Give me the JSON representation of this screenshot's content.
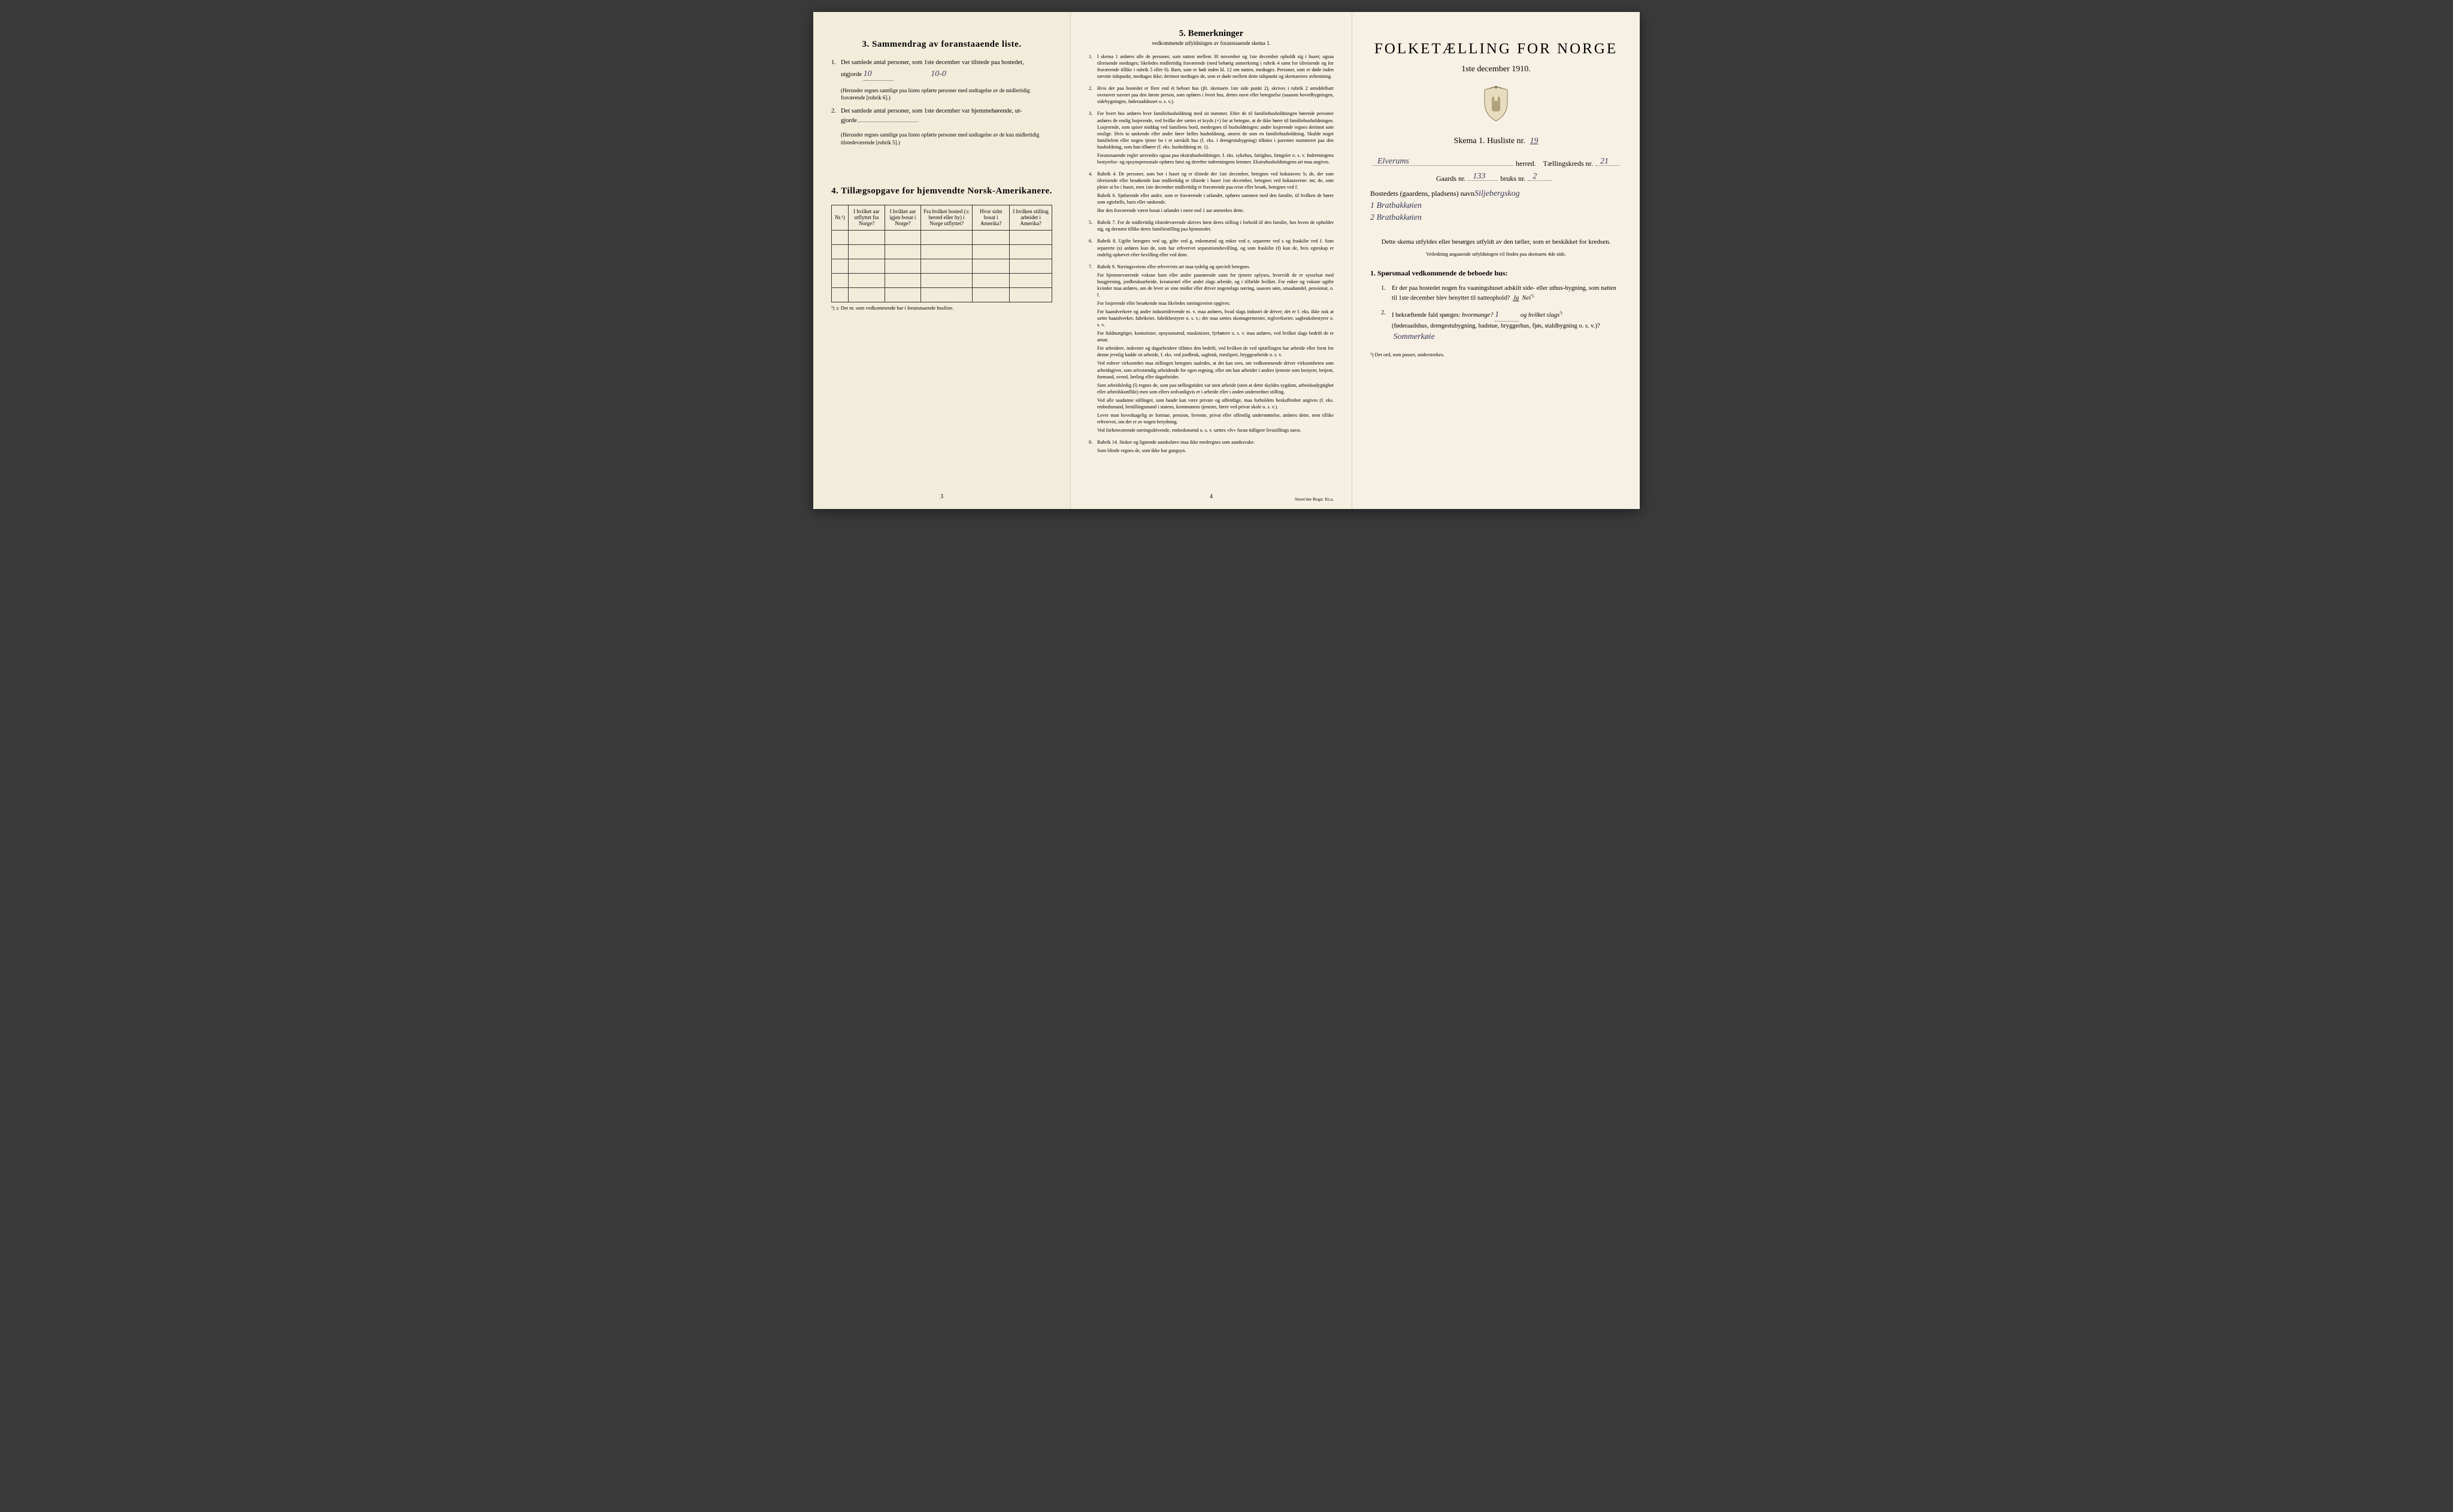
{
  "colors": {
    "paper": "#f4efe0",
    "paper_mid": "#f5f0e2",
    "paper_right": "#f6f1e4",
    "ink": "#2a2a2a",
    "handwriting": "#3a3a5a",
    "border": "#333333",
    "background": "#3a3a3a"
  },
  "left": {
    "section3_title": "3.   Sammendrag av foranstaaende liste.",
    "item1_pre": "Det samlede antal personer, som 1ste december var tilstede paa bostedet,",
    "item1_label": "utgjorde",
    "item1_value": "10",
    "item1_margin": "10-0",
    "item1_note": "(Herunder regnes samtlige paa listen opførte personer med undtagelse av de midlertidig fraværende [rubrik 6].)",
    "item2_pre": "Det samlede antal personer, som 1ste december var hjemmehørende, ut-",
    "item2_label": "gjorde",
    "item2_value": "",
    "item2_note": "(Herunder regnes samtlige paa listen opførte personer med undtagelse av de kun midlertidig tilstedeværende [rubrik 5].)",
    "section4_title": "4.  Tillægsopgave for hjemvendte Norsk-Amerikanere.",
    "table": {
      "headers": [
        "Nr.¹)",
        "I hvilket aar utflyttet fra Norge?",
        "I hvilket aar igjen bosat i Norge?",
        "Fra hvilket bosted (ɔ: herred eller by) i Norge utflyttet?",
        "Hvor sidst bosat i Amerika?",
        "I hvilken stilling arbeidet i Amerika?"
      ],
      "rows": 5
    },
    "table_footnote": "¹) ɔ: Det nr. som vedkommende har i foranstaaende husliste.",
    "page_num": "3"
  },
  "middle": {
    "title": "5.   Bemerkninger",
    "subtitle": "vedkommende utfyldningen av foranstaaende skema 1.",
    "items": [
      {
        "n": "1.",
        "text": "I skema 1 anføres alle de personer, som natten mellem 30 november og 1ste december opholdt sig i huset; ogsaa tilreisende medtages; likeledes midlertidig fraværende (med behørig anmerkning i rubrik 4 samt for tilreisende og for fraværende tillike i rubrik 5 eller 6). Barn, som er født inden kl. 12 om natten, medtages. Personer, som er døde inden nævnte tidspunkt, medtages ikke; derimot medtages de, som er døde mellem dette tidspunkt og skemaernes avhentning."
      },
      {
        "n": "2.",
        "text": "Hvis der paa bostedet er flere end ét beboet hus (jfr. skemaets 1ste side punkt 2), skrives i rubrik 2 umiddelbart ovenover navnet paa den første person, som opføres i hvert hus, dettes navn eller betegnelse (saasom hovedbygningen, sidebygningen, føderaadshuset o. s. v.)."
      },
      {
        "n": "3.",
        "text": "For hvert hus anføres hver familiehusholdning med sit nummer. Efter de til familiehusholdningen hørende personer anføres de enslig losjerende, ved hvilke der sættes et kryds (×) for at betegne, at de ikke hører til familiehusholdningen. Losjerende, som spiser middag ved familiens bord, medregnes til husholdningen; andre losjerende regnes derimot som enslige. Hvis to søskende eller andre fører fælles husholdning, ansees de som en familiehusholdning. Skulde noget familielem eller nogen tjener bo i et særskilt hus (f. eks. i drengestubygning) tilføies i parentes nummeret paa den husholdning, som han tilhører (f. eks. husholdning nr. 1).",
        "text2": "Foranstaaende regler anvendes ogsaa paa ekstrahusholdninger, f. eks. sykehus, fattighus, fængsler o. s. v. Indretningens bestyrelse- og opsynspersonale opføres først og derefter indretningens lemmer. Ekstrahusholdningens art maa angives."
      },
      {
        "n": "4.",
        "text": "Rubrik 4. De personer, som bor i huset og er tilstede der 1ste december, betegnes ved bokstaven: b; de, der som tilreisende eller besøkende kun midlertidig er tilstede i huset 1ste december, betegnes ved bokstaverne: mt; de, som pleier at bo i huset, men 1ste december midlertidig er fraværende paa reise eller besøk, betegnes ved f.",
        "text2": "Rubrik 6. Sjøfarende eller andre, som er fraværende i utlandet, opføres sammen med den familie, til hvilken de hører som egtefælle, barn eller søskende.",
        "text3": "Har den fraværende været bosat i utlandet i mere end 1 aar anmerkes dette."
      },
      {
        "n": "5.",
        "text": "Rubrik 7. For de midlertidig tilstedeværende skrives først deres stilling i forhold til den familie, hos hvem de opholder sig, og dernæst tillike deres familiestilling paa hjemstedet."
      },
      {
        "n": "6.",
        "text": "Rubrik 8. Ugifte betegnes ved ug, gifte ved g, enkemænd og enker ved e, separerte ved s og fraskilte ved f. Som separerte (s) anføres kun de, som har erhvervet separationsbevilling, og som fraskilte (f) kun de, hvis egteskap er endelig ophævet efter bevilling eller ved dom."
      },
      {
        "n": "7.",
        "text": "Rubrik 9. Næringsveiens eller erhvervets art maa tydelig og specielt betegnes.",
        "paragraphs": [
          "For hjemmeværende voksne barn eller andre paarørende samt for tjenere oplyses, hvorvidt de er sysselsat med husgjerning, jordbruksarbeide, kreaturstel eller andet slags arbeide, og i tilfælde hvilket. For enker og voksne ugifte kvinder maa anføres, om de lever av sine midler eller driver nogenslags næring, saasom søm, smaahandel, pensionat, o. l.",
          "For losjerende eller besøkende maa likeledes næringsveien opgives.",
          "For haandverkere og andre industridrivende m. v. maa anføres, hvad slags industri de driver; det er f. eks. ikke nok at sætte haandverker, fabrikeier, fabrikbestyrer o. s. v.; der maa sættes skomagermester, teglverkseier, sagbruksbestyrer o. s. v.",
          "For fuldmægtiger, kontorister, opsynsmænd, maskinister, fyrbøtere o. s. v. maa anføres, ved hvilket slags bedrift de er ansat.",
          "For arbeidere, inderster og dagarbeidere tilføies den bedrift, ved hvilken de ved optællingen har arbeide eller forut for denne jevnlig hadde sit arbeide, f. eks. ved jordbruk, sagbruk, træsliperi, bryggearbeide o. s. v.",
          "Ved enhver virksomhet maa stillingen betegnes saaledes, at det kan sees, om vedkommende driver virksomheten som arbeidsgiver, som selvstændig arbeidende for egen regning, eller om han arbeider i andres tjeneste som bestyrer, betjent, formand, svend, lærling eller dagarbeider.",
          "Som arbeidsledig (l) regnes de, som paa tællingstiden var uten arbeide (uten at dette skyldes sygdom, arbeidsudygtighet eller arbeidskonflikt) men som ellers sedvanligvis er i arbeide eller i anden underordnet stilling.",
          "Ved alle saadanne stillinger, som baade kan være private og offentlige, maa forholdets beskaffenhet angives (f. eks. embedsmand, bestillingsmand i statens, kommunens tjeneste, lærer ved privat skole o. s. v.).",
          "Lever man hovedsagelig av formue, pension, livrente, privat eller offentlig understøttelse, anføres dette, men tillike erhvervet, om det er av nogen betydning.",
          "Ved forhenværende næringsdrivende, embedsmænd o. s. v. sættes «fv» foran tidligere livsstillings navn."
        ]
      },
      {
        "n": "8.",
        "text": "Rubrik 14. Sinker og lignende aandssløve maa ikke medregnes som aandssvake.",
        "text2": "Som blinde regnes de, som ikke har gangsyn."
      }
    ],
    "page_num": "4",
    "printer": "Steen'ske Bogtr.  Kr.a."
  },
  "right": {
    "main_title": "FOLKETÆLLING FOR NORGE",
    "date": "1ste december 1910.",
    "skema_label": "Skema 1.   Husliste nr.",
    "husliste_nr": "19",
    "herred_label": "herred.",
    "herred_value": "Elverums",
    "tellingskreds_label": "Tællingskreds nr.",
    "tellingskreds_nr": "21",
    "struck_word": "",
    "gaards_label": "Gaards nr.",
    "gaards_nr": "133",
    "bruks_label": "bruks nr.",
    "bruks_nr": "2",
    "bosted_label": "Bostedets (gaardens, pladsens) navn",
    "bosted_value": "Siljebergskog",
    "bosted_line1": "1  Bratbakkøien",
    "bosted_line2": "2  Bratbakkøien",
    "instruction": "Dette skema utfyldes eller besørges utfyldt av den tæller, som er beskikket for kredsen.",
    "instruction_sub": "Veiledning angaaende utfyldningen vil findes paa skemaets 4de side.",
    "sporsmaal_header": "1. Spørsmaal vedkommende de beboede hus:",
    "q1": "Er der paa bostedet nogen fra vaaningshuset adskilt side- eller uthus-bygning, som natten til 1ste december blev benyttet til natteophold?",
    "q1_ja": "Ja",
    "q1_nei": "Nei",
    "q1_sup": "¹).",
    "q2_pre": "I bekræftende fald spørges:",
    "q2_hvormange_label": "hvormange?",
    "q2_hvormange_val": "1",
    "q2_slags_label": "og hvilket slags",
    "q2_sup": "¹)",
    "q2_paren": "(føderaadshus, drengestubygning, badstue, bryggerhus, fjøs, staldbygning o. s. v.)?",
    "q2_answer": "Sommerkøie",
    "footnote": "¹) Det ord, som passer, understrekes."
  }
}
